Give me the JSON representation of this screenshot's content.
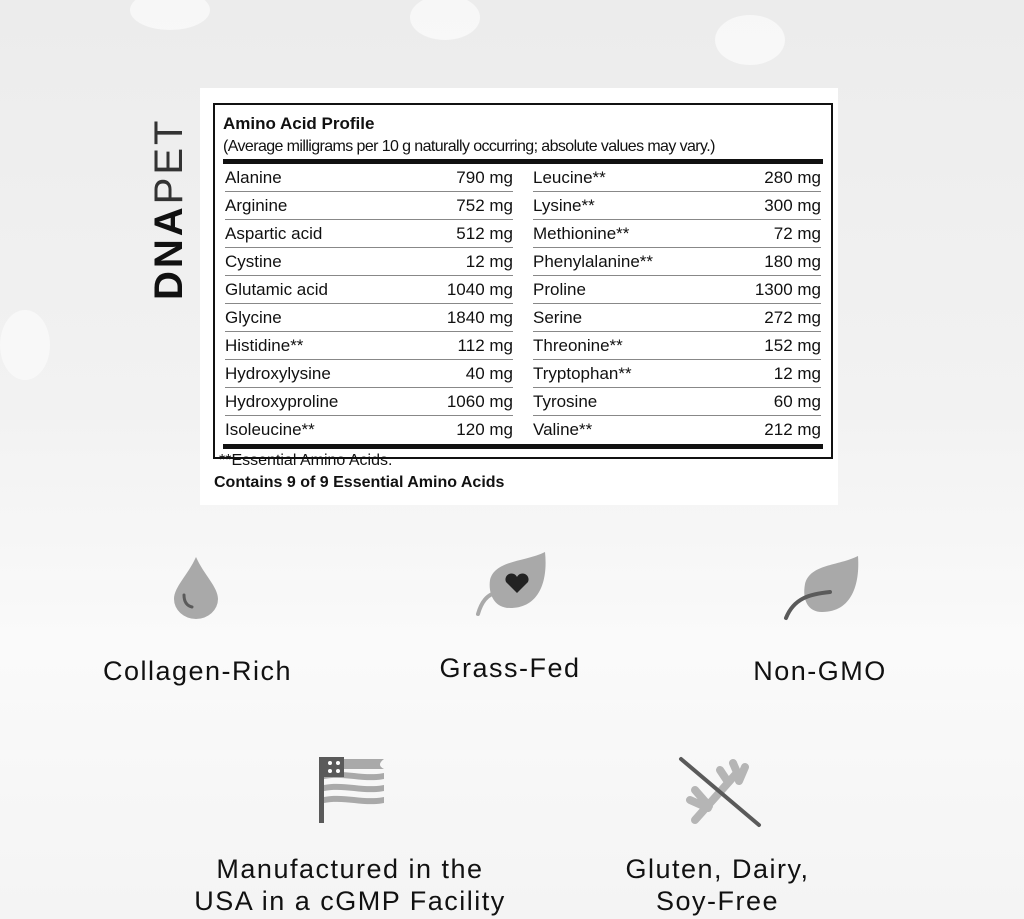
{
  "brand": {
    "logo_text": "DNAPET",
    "bold_part": "DNA",
    "light_part": "PET"
  },
  "table": {
    "title": "Amino Acid Profile",
    "subtitle": "(Average milligrams per 10 g naturally occurring; absolute values may vary.)",
    "left": [
      {
        "name": "Alanine",
        "value": "790 mg"
      },
      {
        "name": "Arginine",
        "value": "752 mg"
      },
      {
        "name": "Aspartic acid",
        "value": "512 mg"
      },
      {
        "name": "Cystine",
        "value": "12 mg"
      },
      {
        "name": "Glutamic acid",
        "value": "1040 mg"
      },
      {
        "name": "Glycine",
        "value": "1840 mg"
      },
      {
        "name": "Histidine**",
        "value": "112 mg"
      },
      {
        "name": "Hydroxylysine",
        "value": "40 mg"
      },
      {
        "name": "Hydroxyproline",
        "value": "1060 mg"
      },
      {
        "name": "Isoleucine**",
        "value": "120 mg"
      }
    ],
    "right": [
      {
        "name": "Leucine**",
        "value": "280 mg"
      },
      {
        "name": "Lysine**",
        "value": "300 mg"
      },
      {
        "name": "Methionine**",
        "value": "72 mg"
      },
      {
        "name": "Phenylalanine**",
        "value": "180 mg"
      },
      {
        "name": "Proline",
        "value": "1300 mg"
      },
      {
        "name": "Serine",
        "value": "272 mg"
      },
      {
        "name": "Threonine**",
        "value": "152 mg"
      },
      {
        "name": "Tryptophan**",
        "value": "12 mg"
      },
      {
        "name": "Tyrosine",
        "value": "60 mg"
      },
      {
        "name": "Valine**",
        "value": "212 mg"
      }
    ],
    "footnote": "**Essential Amino Acids.",
    "contains": "Contains 9 of 9 Essential Amino Acids"
  },
  "features": [
    {
      "label": "Collagen-Rich",
      "icon": "droplet-icon"
    },
    {
      "label": "Grass-Fed",
      "icon": "leaf-heart-icon"
    },
    {
      "label": "Non-GMO",
      "icon": "leaf-icon"
    },
    {
      "label": "Manufactured in the USA in a cGMP Facility",
      "line1": "Manufactured in the",
      "line2": "USA in a cGMP Facility",
      "icon": "us-flag-icon"
    },
    {
      "label": "Gluten, Dairy, Soy-Free",
      "line1": "Gluten, Dairy,",
      "line2": "Soy-Free",
      "icon": "no-wheat-icon"
    }
  ],
  "colors": {
    "icon_light": "#a9a9a9",
    "icon_dark": "#5a5a5a",
    "text": "#111111"
  }
}
